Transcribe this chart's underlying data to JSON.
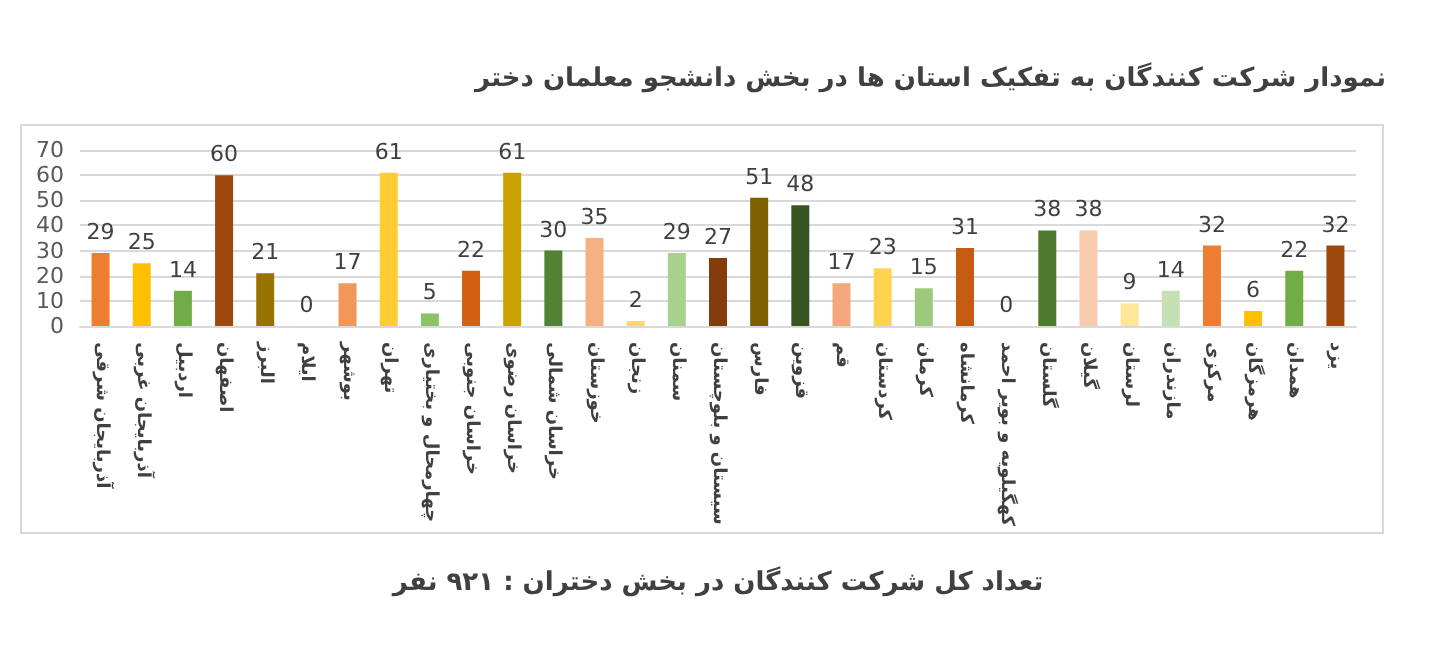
{
  "chart_data": {
    "type": "bar",
    "title": "نمودار شرکت کنندگان به تفکیک استان ها در بخش دانشجو معلمان دختر",
    "categories": [
      "آذربایجان شرقی",
      "آذربایجان غربی",
      "اردبیل",
      "اصفهان",
      "البرز",
      "ایلام",
      "بوشهر",
      "تهران",
      "چهارمحال و بختیاری",
      "خراسان جنوبی",
      "خراسان رضوی",
      "خراسان شمالی",
      "خوزستان",
      "زنجان",
      "سمنان",
      "سیستان و بلوچستان",
      "فارس",
      "قزوین",
      "قم",
      "کردستان",
      "کرمان",
      "کرمانشاه",
      "کهگیلویه و بویر احمد",
      "گلستان",
      "گیلان",
      "لرستان",
      "مازندران",
      "مرکزی",
      "هرمزگان",
      "همدان",
      "یزد"
    ],
    "values": [
      29,
      25,
      14,
      60,
      21,
      0,
      17,
      61,
      5,
      22,
      61,
      30,
      35,
      2,
      29,
      27,
      51,
      48,
      17,
      23,
      15,
      31,
      0,
      38,
      38,
      9,
      14,
      32,
      6,
      22,
      32
    ],
    "colors": [
      "#ed7d31",
      "#ffc000",
      "#70ad47",
      "#9e480e",
      "#997300",
      "#43682b",
      "#f1975a",
      "#ffcd33",
      "#8cc168",
      "#d26012",
      "#c9a100",
      "#548235",
      "#f4b183",
      "#ffd966",
      "#a9d18e",
      "#843c0c",
      "#7f6000",
      "#375623",
      "#f4a77a",
      "#ffd34d",
      "#9dc97d",
      "#c55a11",
      "#ffc000",
      "#4e7a30",
      "#f8cbad",
      "#ffe699",
      "#c5e0b4",
      "#ed7d31",
      "#ffc000",
      "#70ad47",
      "#9e480e"
    ],
    "ylim": [
      0,
      70
    ],
    "yticks": [
      0,
      10,
      20,
      30,
      40,
      50,
      60,
      70
    ],
    "grid": "y",
    "data_labels": true,
    "annotations": [
      "تعداد کل شرکت کنندگان در بخش دختران : ۹۲۱ نفر"
    ]
  }
}
